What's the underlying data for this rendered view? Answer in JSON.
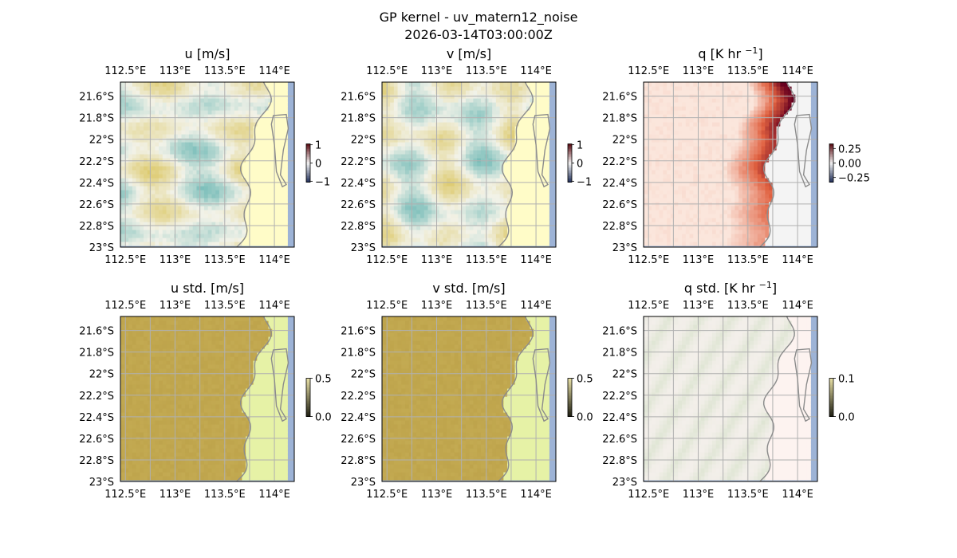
{
  "figure": {
    "title_line1": "GP kernel - uv_matern12_noise",
    "title_line2": "2026-03-14T03:00:00Z"
  },
  "colors": {
    "ocean": "#9db3d6",
    "coast": "#8c8c8c",
    "grid": "#b0b0b0",
    "yellow_land": "#fffcc8",
    "std_land": "#e6f2a6",
    "std_sea": "#c6ad55",
    "q_land": "#f4f4f4",
    "q_sea_lo": "#fbe6dc",
    "q_sea_hi": "#67001f",
    "qstd_land": "#fdf3f0",
    "qstd_sea": "#f3efea",
    "qstd_streak": "#d8e2cc"
  },
  "chart_data": [
    {
      "type": "heatmap",
      "title": "u [m/s]",
      "title_sup": "",
      "title_end": "",
      "field": "uv",
      "seed": 11,
      "x_ticks": [
        "112.5°E",
        "113°E",
        "113.5°E",
        "114°E"
      ],
      "x_values": [
        112.5,
        113.0,
        113.5,
        114.0
      ],
      "y_ticks": [
        "21.6°S",
        "21.8°S",
        "22°S",
        "22.2°S",
        "22.4°S",
        "22.6°S",
        "22.8°S",
        "23°S"
      ],
      "y_values": [
        -21.6,
        -21.8,
        -22.0,
        -22.2,
        -22.4,
        -22.6,
        -22.8,
        -23.0
      ],
      "xlim": [
        112.45,
        114.2
      ],
      "ylim": [
        -23.0,
        -21.47
      ],
      "colorbar": {
        "labels": [
          "1",
          "0",
          "−1"
        ],
        "values": [
          1,
          0,
          -1
        ],
        "range": [
          -1.05,
          1.05
        ],
        "scale": "balance"
      }
    },
    {
      "type": "heatmap",
      "title": "v [m/s]",
      "title_sup": "",
      "title_end": "",
      "field": "uv",
      "seed": 23,
      "x_ticks": [
        "112.5°E",
        "113°E",
        "113.5°E",
        "114°E"
      ],
      "x_values": [
        112.5,
        113.0,
        113.5,
        114.0
      ],
      "y_ticks": [
        "21.6°S",
        "21.8°S",
        "22°S",
        "22.2°S",
        "22.4°S",
        "22.6°S",
        "22.8°S",
        "23°S"
      ],
      "y_values": [
        -21.6,
        -21.8,
        -22.0,
        -22.2,
        -22.4,
        -22.6,
        -22.8,
        -23.0
      ],
      "xlim": [
        112.45,
        114.2
      ],
      "ylim": [
        -23.0,
        -21.47
      ],
      "colorbar": {
        "labels": [
          "1",
          "0",
          "−1"
        ],
        "values": [
          1,
          0,
          -1
        ],
        "range": [
          -1.05,
          1.05
        ],
        "scale": "balance"
      }
    },
    {
      "type": "heatmap",
      "title": "q [K hr ",
      "title_sup": "−1",
      "title_end": "]",
      "field": "q",
      "seed": 37,
      "x_ticks": [
        "112.5°E",
        "113°E",
        "113.5°E",
        "114°E"
      ],
      "x_values": [
        112.5,
        113.0,
        113.5,
        114.0
      ],
      "y_ticks": [
        "21.6°S",
        "21.8°S",
        "22°S",
        "22.2°S",
        "22.4°S",
        "22.6°S",
        "22.8°S",
        "23°S"
      ],
      "y_values": [
        -21.6,
        -21.8,
        -22.0,
        -22.2,
        -22.4,
        -22.6,
        -22.8,
        -23.0
      ],
      "xlim": [
        112.45,
        114.2
      ],
      "ylim": [
        -23.0,
        -21.47
      ],
      "colorbar": {
        "labels": [
          "0.25",
          "0.00",
          "−0.25"
        ],
        "values": [
          0.25,
          0.0,
          -0.25
        ],
        "range": [
          -0.33,
          0.33
        ],
        "scale": "balance"
      }
    },
    {
      "type": "heatmap",
      "title": "u std. [m/s]",
      "title_sup": "",
      "title_end": "",
      "field": "std",
      "seed": 51,
      "x_ticks": [
        "112.5°E",
        "113°E",
        "113.5°E",
        "114°E"
      ],
      "x_values": [
        112.5,
        113.0,
        113.5,
        114.0
      ],
      "y_ticks": [
        "21.6°S",
        "21.8°S",
        "22°S",
        "22.2°S",
        "22.4°S",
        "22.6°S",
        "22.8°S",
        "23°S"
      ],
      "y_values": [
        -21.6,
        -21.8,
        -22.0,
        -22.2,
        -22.4,
        -22.6,
        -22.8,
        -23.0
      ],
      "xlim": [
        112.45,
        114.2
      ],
      "ylim": [
        -23.0,
        -21.47
      ],
      "colorbar": {
        "labels": [
          "0.5",
          "0.0"
        ],
        "values": [
          0.5,
          0.0
        ],
        "range": [
          0.0,
          0.5
        ],
        "scale": "speed"
      }
    },
    {
      "type": "heatmap",
      "title": "v std. [m/s]",
      "title_sup": "",
      "title_end": "",
      "field": "std",
      "seed": 63,
      "x_ticks": [
        "112.5°E",
        "113°E",
        "113.5°E",
        "114°E"
      ],
      "x_values": [
        112.5,
        113.0,
        113.5,
        114.0
      ],
      "y_ticks": [
        "21.6°S",
        "21.8°S",
        "22°S",
        "22.2°S",
        "22.4°S",
        "22.6°S",
        "22.8°S",
        "23°S"
      ],
      "y_values": [
        -21.6,
        -21.8,
        -22.0,
        -22.2,
        -22.4,
        -22.6,
        -22.8,
        -23.0
      ],
      "xlim": [
        112.45,
        114.2
      ],
      "ylim": [
        -23.0,
        -21.47
      ],
      "colorbar": {
        "labels": [
          "0.5",
          "0.0"
        ],
        "values": [
          0.5,
          0.0
        ],
        "range": [
          0.0,
          0.5
        ],
        "scale": "speed"
      }
    },
    {
      "type": "heatmap",
      "title": "q std. [K hr ",
      "title_sup": "−1",
      "title_end": "]",
      "field": "qstd",
      "seed": 77,
      "x_ticks": [
        "112.5°E",
        "113°E",
        "113.5°E",
        "114°E"
      ],
      "x_values": [
        112.5,
        113.0,
        113.5,
        114.0
      ],
      "y_ticks": [
        "21.6°S",
        "21.8°S",
        "22°S",
        "22.2°S",
        "22.4°S",
        "22.6°S",
        "22.8°S",
        "23°S"
      ],
      "y_values": [
        -21.6,
        -21.8,
        -22.0,
        -22.2,
        -22.4,
        -22.6,
        -22.8,
        -23.0
      ],
      "xlim": [
        112.45,
        114.2
      ],
      "ylim": [
        -23.0,
        -21.47
      ],
      "colorbar": {
        "labels": [
          "0.1",
          "0.0"
        ],
        "values": [
          0.1,
          0.0
        ],
        "range": [
          0.0,
          0.1
        ],
        "scale": "speed"
      }
    }
  ]
}
